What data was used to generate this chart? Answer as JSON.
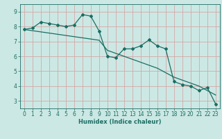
{
  "xlabel": "Humidex (Indice chaleur)",
  "x_values": [
    0,
    1,
    2,
    3,
    4,
    5,
    6,
    7,
    8,
    9,
    10,
    11,
    12,
    13,
    14,
    15,
    16,
    17,
    18,
    19,
    20,
    21,
    22,
    23
  ],
  "y_line1": [
    7.8,
    7.9,
    8.3,
    8.2,
    8.1,
    8.0,
    8.1,
    8.8,
    8.7,
    7.7,
    6.0,
    5.9,
    6.5,
    6.5,
    6.7,
    7.1,
    6.7,
    6.5,
    4.3,
    4.1,
    4.0,
    3.7,
    3.9,
    2.8
  ],
  "y_line2": [
    7.8,
    7.72,
    7.64,
    7.56,
    7.48,
    7.4,
    7.32,
    7.24,
    7.16,
    7.08,
    6.4,
    6.2,
    6.0,
    5.8,
    5.6,
    5.4,
    5.2,
    4.9,
    4.6,
    4.4,
    4.2,
    4.0,
    3.7,
    3.4
  ],
  "bg_color": "#cce8e4",
  "grid_color": "#d4a8a8",
  "line_color": "#1a6e64",
  "ylim": [
    2.5,
    9.5
  ],
  "xlim": [
    -0.5,
    23.5
  ],
  "yticks": [
    3,
    4,
    5,
    6,
    7,
    8,
    9
  ],
  "xticks": [
    0,
    1,
    2,
    3,
    4,
    5,
    6,
    7,
    8,
    9,
    10,
    11,
    12,
    13,
    14,
    15,
    16,
    17,
    18,
    19,
    20,
    21,
    22,
    23
  ]
}
